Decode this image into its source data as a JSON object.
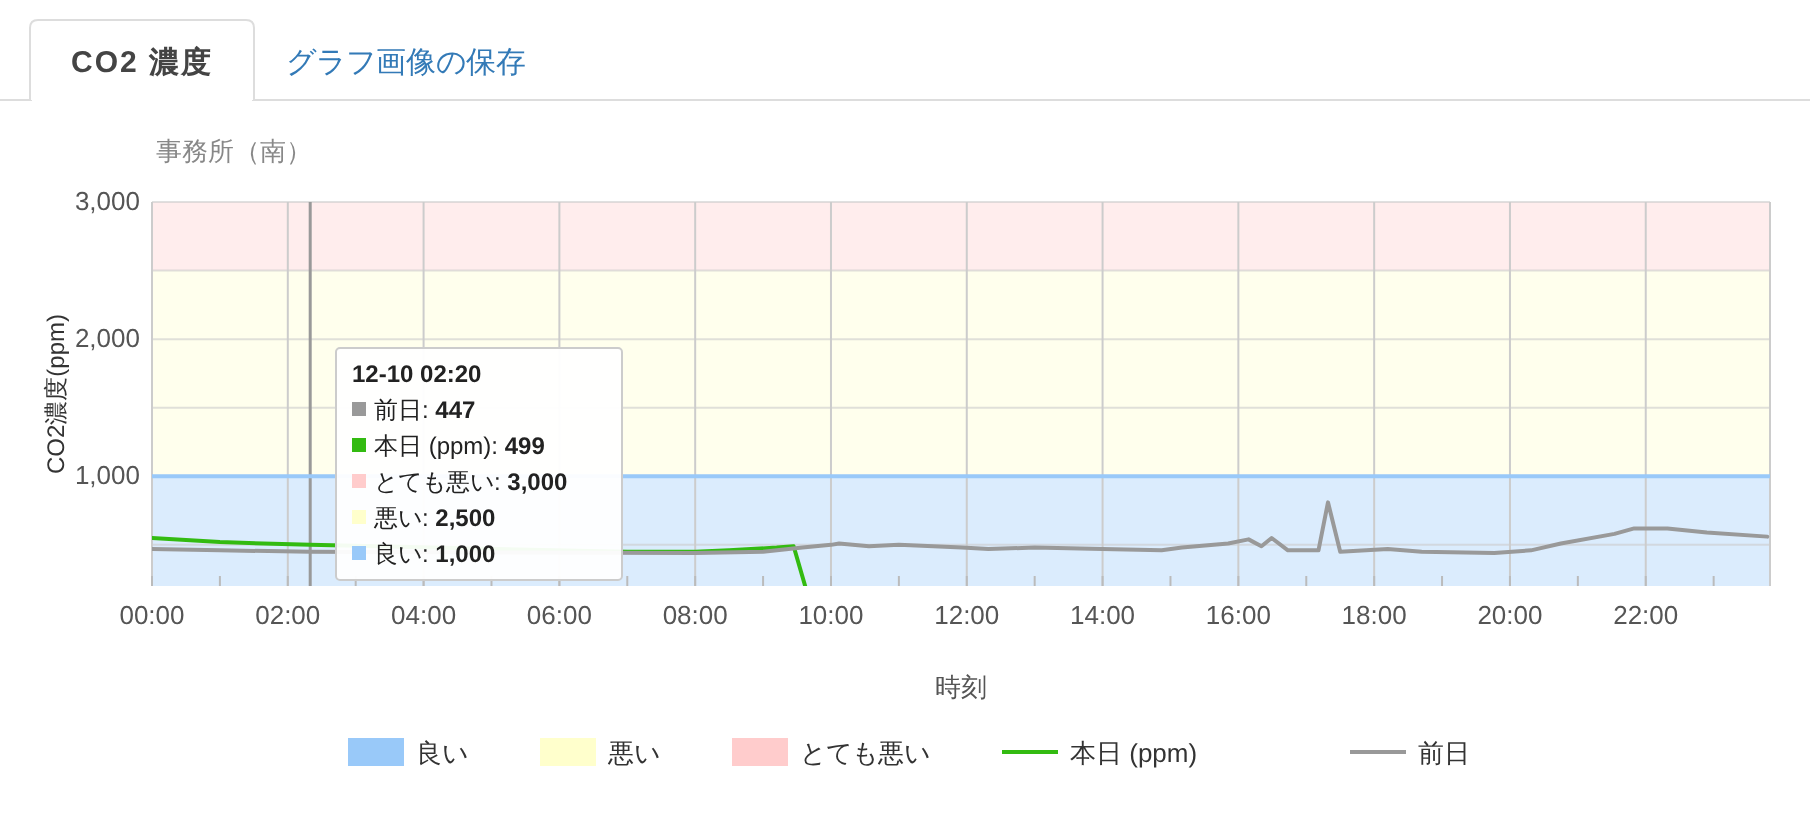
{
  "chart_data": {
    "type": "line",
    "title": "事務所（南）",
    "xlabel": "時刻",
    "ylabel": "CO2濃度(ppm)",
    "annotations": [
      "CO2 濃度",
      "グラフ画像の保存",
      "12-10 02:20",
      "前日: 447",
      "本日 (ppm): 499",
      "とても悪い: 3,000",
      "悪い: 2,500",
      "良い: 1,000"
    ],
    "xlim": [
      0,
      23.83
    ],
    "ylim": [
      200,
      3000
    ],
    "xticks": [
      {
        "value": 0,
        "label": "00:00"
      },
      {
        "value": 1,
        "label": null
      },
      {
        "value": 2,
        "label": "02:00"
      },
      {
        "value": 3,
        "label": null
      },
      {
        "value": 4,
        "label": "04:00"
      },
      {
        "value": 5,
        "label": null
      },
      {
        "value": 6,
        "label": "06:00"
      },
      {
        "value": 7,
        "label": null
      },
      {
        "value": 8,
        "label": "08:00"
      },
      {
        "value": 9,
        "label": null
      },
      {
        "value": 10,
        "label": "10:00"
      },
      {
        "value": 11,
        "label": null
      },
      {
        "value": 12,
        "label": "12:00"
      },
      {
        "value": 13,
        "label": null
      },
      {
        "value": 14,
        "label": "14:00"
      },
      {
        "value": 15,
        "label": null
      },
      {
        "value": 16,
        "label": "16:00"
      },
      {
        "value": 17,
        "label": null
      },
      {
        "value": 18,
        "label": "18:00"
      },
      {
        "value": 19,
        "label": null
      },
      {
        "value": 20,
        "label": "20:00"
      },
      {
        "value": 21,
        "label": null
      },
      {
        "value": 22,
        "label": "22:00"
      },
      {
        "value": 23,
        "label": null
      }
    ],
    "yticks": [
      {
        "value": 500,
        "label": null
      },
      {
        "value": 1000,
        "label": "1,000"
      },
      {
        "value": 1500,
        "label": null
      },
      {
        "value": 2000,
        "label": "2,000"
      },
      {
        "value": 2500,
        "label": null
      },
      {
        "value": 3000,
        "label": "3,000"
      }
    ],
    "grid": true,
    "legend": "bottom",
    "marker": "none",
    "line_style": "solid",
    "bands": [
      {
        "axis": "y",
        "from": 200,
        "to": 1000,
        "label": "良い",
        "color": "#99c9f9"
      },
      {
        "axis": "y",
        "from": 1000,
        "to": 2500,
        "label": "悪い",
        "color": "#ffffcc"
      },
      {
        "axis": "y",
        "from": 2500,
        "to": 3000,
        "label": "とても悪い",
        "color": "#ffcccc"
      }
    ],
    "ref_lines": [
      {
        "axis": "x",
        "value": 2.33,
        "color": "#999999"
      },
      {
        "axis": "y",
        "value": 1000,
        "color": "#99c9f9"
      }
    ],
    "series": [
      {
        "name": "本日 (ppm)",
        "color": "#33bb11",
        "x": [
          0,
          1,
          2.33,
          7,
          8,
          8.5,
          9.2,
          9.45,
          9.62
        ],
        "values": [
          550,
          520,
          500,
          450,
          450,
          460,
          480,
          490,
          200
        ]
      },
      {
        "name": "前日",
        "color": "#999999",
        "x": [
          0,
          1,
          2.33,
          8,
          9,
          9.58,
          10,
          10.12,
          10.56,
          11,
          11.93,
          12.32,
          13,
          14,
          14.87,
          15.17,
          15.85,
          16.15,
          16.34,
          16.49,
          16.73,
          17.18,
          17.32,
          17.5,
          18.2,
          18.7,
          19.77,
          20.31,
          20.75,
          21.54,
          21.83,
          22.32,
          22.9,
          23.79
        ],
        "values": [
          470,
          460,
          450,
          440,
          450,
          480,
          500,
          510,
          490,
          500,
          480,
          470,
          480,
          470,
          460,
          480,
          510,
          540,
          490,
          550,
          460,
          460,
          810,
          450,
          470,
          450,
          440,
          460,
          510,
          580,
          620,
          620,
          590,
          560
        ]
      }
    ]
  }
}
